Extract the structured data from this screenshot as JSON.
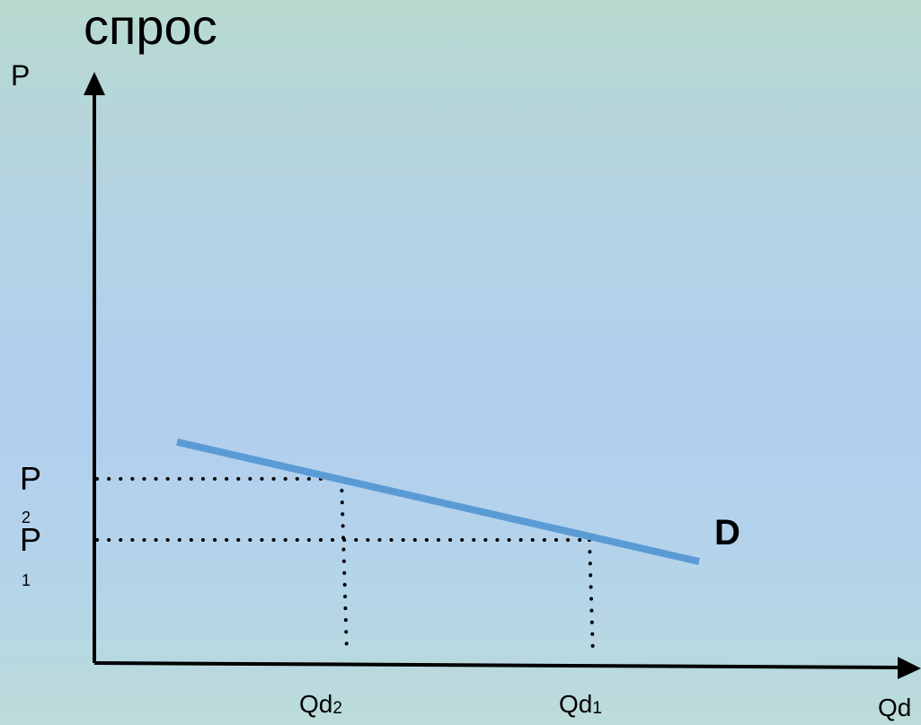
{
  "title": "спрос",
  "axes": {
    "y_label": "P",
    "x_label": "Qd"
  },
  "price_levels": [
    {
      "letter": "P",
      "subscript": "2"
    },
    {
      "letter": "P",
      "subscript": "1"
    }
  ],
  "quantity_levels": [
    {
      "base": "Qd",
      "subscript": "2"
    },
    {
      "base": "Qd",
      "subscript": "1"
    }
  ],
  "curve_label": "D",
  "colors": {
    "curve": "#5b9bd5",
    "axis": "#000000"
  }
}
